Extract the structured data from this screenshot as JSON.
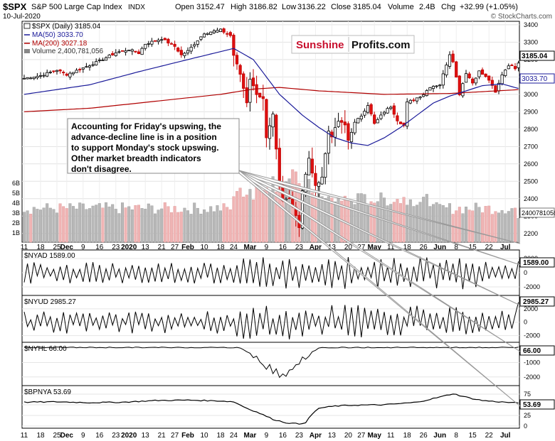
{
  "header": {
    "symbol": "$SPX",
    "name": "S&P 500 Large Cap Index",
    "exchange": "INDX",
    "date": "10-Jul-2020",
    "open_label": "Open",
    "open": "3152.47",
    "high_label": "High",
    "high": "3186.82",
    "low_label": "Low",
    "low": "3136.22",
    "close_label": "Close",
    "close": "3185.04",
    "volume_label": "Volume",
    "volume": "2.4B",
    "chg_label": "Chg",
    "chg": "+32.99 (+1.05%)",
    "copyright": "© StockCharts.com"
  },
  "legend": {
    "price": "$SPX (Daily) 3185.04",
    "ma50": "MA(50) 3033.70",
    "ma200": "MA(200) 3027.18",
    "volume": "Volume 2,400,781,056"
  },
  "logo": {
    "part1": "Sunshine",
    "part2": "Profits.com"
  },
  "annotation": {
    "lines": [
      "Accounting for Friday's upswing, the",
      "advance-decline line is in a position",
      "to support Monday's stock upswing.",
      "Other market breadth indicators",
      "don't disagree."
    ]
  },
  "x_labels": [
    {
      "i": 0,
      "t": "11"
    },
    {
      "i": 5,
      "t": "18"
    },
    {
      "i": 10,
      "t": "25"
    },
    {
      "i": 13,
      "t": "Dec"
    },
    {
      "i": 18,
      "t": "9"
    },
    {
      "i": 23,
      "t": "16"
    },
    {
      "i": 28,
      "t": "23"
    },
    {
      "i": 32,
      "t": "2020"
    },
    {
      "i": 37,
      "t": "13"
    },
    {
      "i": 42,
      "t": "21"
    },
    {
      "i": 46,
      "t": "27"
    },
    {
      "i": 50,
      "t": "Feb"
    },
    {
      "i": 55,
      "t": "10"
    },
    {
      "i": 60,
      "t": "18"
    },
    {
      "i": 64,
      "t": "24"
    },
    {
      "i": 69,
      "t": "Mar"
    },
    {
      "i": 74,
      "t": "9"
    },
    {
      "i": 79,
      "t": "16"
    },
    {
      "i": 84,
      "t": "23"
    },
    {
      "i": 89,
      "t": "Apr"
    },
    {
      "i": 94,
      "t": "13"
    },
    {
      "i": 99,
      "t": "20"
    },
    {
      "i": 103,
      "t": "27"
    },
    {
      "i": 107,
      "t": "May"
    },
    {
      "i": 112,
      "t": "11"
    },
    {
      "i": 117,
      "t": "18"
    },
    {
      "i": 122,
      "t": "26"
    },
    {
      "i": 127,
      "t": "Jun"
    },
    {
      "i": 132,
      "t": "8"
    },
    {
      "i": 137,
      "t": "15"
    },
    {
      "i": 142,
      "t": "22"
    },
    {
      "i": 147,
      "t": "Jul"
    }
  ],
  "chart_data": [
    {
      "type": "candlestick",
      "panel": "price",
      "title": "$SPX (Daily) 3185.04",
      "y_ticks": [
        2200,
        2300,
        2400,
        2500,
        2600,
        2700,
        2800,
        2900,
        3000,
        3100,
        3200,
        3300,
        3400
      ],
      "ylim": [
        2150,
        3420
      ],
      "last_value_label": "3185.04",
      "ma50_label": "3033.70",
      "volume_value_label": "2400781056",
      "volume_ticks": [
        "1B",
        "2B",
        "3B",
        "4B",
        "5B",
        "6B"
      ],
      "close_anchors": [
        [
          0,
          3092
        ],
        [
          5,
          3108
        ],
        [
          10,
          3140
        ],
        [
          13,
          3114
        ],
        [
          18,
          3152
        ],
        [
          23,
          3192
        ],
        [
          28,
          3240
        ],
        [
          32,
          3258
        ],
        [
          35,
          3237
        ],
        [
          37,
          3290
        ],
        [
          42,
          3320
        ],
        [
          46,
          3276
        ],
        [
          48,
          3226
        ],
        [
          50,
          3249
        ],
        [
          55,
          3352
        ],
        [
          60,
          3370
        ],
        [
          63,
          3338
        ],
        [
          64,
          3225
        ],
        [
          66,
          3116
        ],
        [
          68,
          2954
        ],
        [
          69,
          3090
        ],
        [
          71,
          3003
        ],
        [
          73,
          2972
        ],
        [
          74,
          2746
        ],
        [
          76,
          2882
        ],
        [
          78,
          2480
        ],
        [
          79,
          2386
        ],
        [
          81,
          2409
        ],
        [
          83,
          2305
        ],
        [
          84,
          2237
        ],
        [
          85,
          2447
        ],
        [
          87,
          2630
        ],
        [
          89,
          2470
        ],
        [
          91,
          2526
        ],
        [
          93,
          2790
        ],
        [
          94,
          2760
        ],
        [
          96,
          2846
        ],
        [
          98,
          2823
        ],
        [
          99,
          2736
        ],
        [
          101,
          2836
        ],
        [
          103,
          2878
        ],
        [
          105,
          2940
        ],
        [
          107,
          2830
        ],
        [
          110,
          2900
        ],
        [
          112,
          2930
        ],
        [
          114,
          2852
        ],
        [
          116,
          2820
        ],
        [
          117,
          2953
        ],
        [
          119,
          2970
        ],
        [
          122,
          3000
        ],
        [
          124,
          3044
        ],
        [
          127,
          3056
        ],
        [
          130,
          3232
        ],
        [
          131,
          3193
        ],
        [
          133,
          3002
        ],
        [
          135,
          3124
        ],
        [
          137,
          3066
        ],
        [
          139,
          3132
        ],
        [
          142,
          3083
        ],
        [
          144,
          3009
        ],
        [
          146,
          3115
        ],
        [
          148,
          3169
        ],
        [
          150,
          3152
        ],
        [
          151,
          3185
        ]
      ],
      "ma50_anchors": [
        [
          0,
          3000
        ],
        [
          20,
          3055
        ],
        [
          35,
          3130
        ],
        [
          50,
          3200
        ],
        [
          64,
          3264
        ],
        [
          70,
          3200
        ],
        [
          78,
          3000
        ],
        [
          85,
          2880
        ],
        [
          90,
          2810
        ],
        [
          95,
          2750
        ],
        [
          100,
          2720
        ],
        [
          105,
          2706
        ],
        [
          110,
          2750
        ],
        [
          115,
          2810
        ],
        [
          120,
          2880
        ],
        [
          125,
          2950
        ],
        [
          130,
          2990
        ],
        [
          135,
          3020
        ],
        [
          140,
          3050
        ],
        [
          146,
          3060
        ],
        [
          151,
          3034
        ]
      ],
      "ma200_anchors": [
        [
          0,
          2900
        ],
        [
          20,
          2920
        ],
        [
          40,
          2960
        ],
        [
          60,
          3000
        ],
        [
          70,
          3030
        ],
        [
          78,
          3040
        ],
        [
          90,
          3020
        ],
        [
          110,
          3000
        ],
        [
          130,
          3005
        ],
        [
          151,
          3027
        ]
      ]
    },
    {
      "type": "line",
      "panel": "nyad",
      "title": "$NYAD 1589.00",
      "y_ticks": [
        2000,
        0,
        -2000
      ],
      "ylim": [
        -3200,
        3200
      ],
      "last_value_label": "1589.00"
    },
    {
      "type": "line",
      "panel": "nyud",
      "title": "$NYUD 2985.27",
      "y_ticks": [
        2000,
        0,
        -2000
      ],
      "ylim": [
        -3000,
        4000
      ],
      "last_value_label": "2985.27"
    },
    {
      "type": "line",
      "panel": "nyhl",
      "title": "$NYHL 66.00",
      "y_ticks": [
        0,
        -1000,
        -2000
      ],
      "ylim": [
        -2600,
        400
      ],
      "last_value_label": "66.00"
    },
    {
      "type": "line",
      "panel": "bpnya",
      "title": "$BPNYA 53.69",
      "y_ticks": [
        75,
        50,
        25,
        0
      ],
      "ylim": [
        -5,
        95
      ],
      "last_value_label": "53.69",
      "anchors": [
        [
          0,
          56
        ],
        [
          10,
          57
        ],
        [
          20,
          55
        ],
        [
          30,
          56
        ],
        [
          40,
          60
        ],
        [
          50,
          61
        ],
        [
          60,
          59
        ],
        [
          64,
          57
        ],
        [
          68,
          42
        ],
        [
          72,
          30
        ],
        [
          76,
          16
        ],
        [
          80,
          8
        ],
        [
          84,
          5
        ],
        [
          86,
          9
        ],
        [
          88,
          28
        ],
        [
          90,
          42
        ],
        [
          95,
          47
        ],
        [
          100,
          49
        ],
        [
          110,
          50
        ],
        [
          120,
          56
        ],
        [
          128,
          70
        ],
        [
          131,
          76
        ],
        [
          133,
          72
        ],
        [
          136,
          66
        ],
        [
          140,
          60
        ],
        [
          145,
          57
        ],
        [
          151,
          54
        ]
      ]
    }
  ]
}
